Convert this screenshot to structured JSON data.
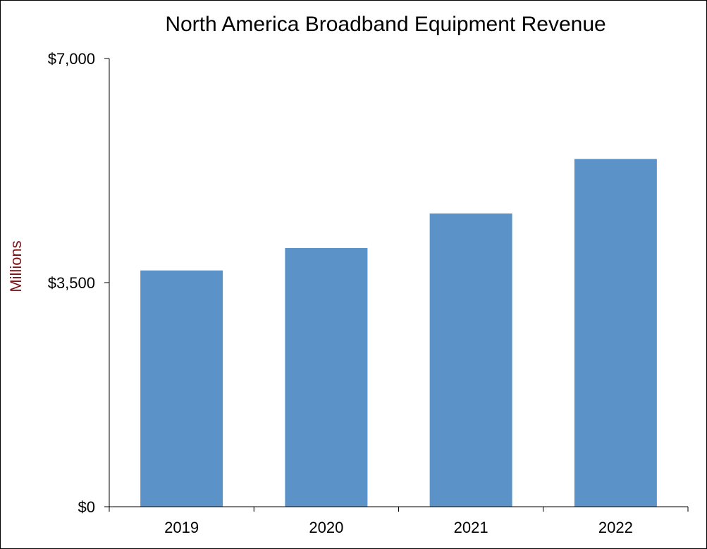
{
  "chart_data": {
    "type": "bar",
    "title": "North America Broadband Equipment Revenue",
    "xlabel": "",
    "ylabel": "Millions",
    "categories": [
      "2019",
      "2020",
      "2021",
      "2022"
    ],
    "values": [
      3690,
      4040,
      4580,
      5430
    ],
    "ylim": [
      0,
      7000
    ],
    "y_ticks": [
      0,
      3500,
      7000
    ],
    "y_tick_labels": [
      "$0",
      "$3,500",
      "$7,000"
    ],
    "grid": false,
    "legend": "none",
    "colors": {
      "bar": "#5B93C9",
      "ylabel": "#7B1416",
      "axis": "#000000"
    }
  }
}
